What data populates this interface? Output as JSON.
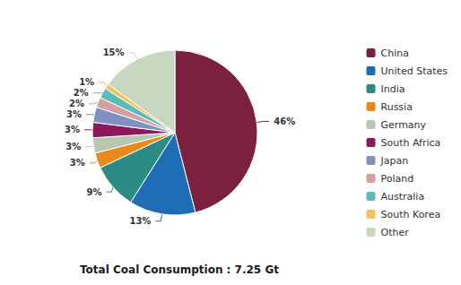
{
  "chart_data": {
    "type": "pie",
    "title": "Total Coal Consumption : 7.25 Gt",
    "categories": [
      "China",
      "United States",
      "India",
      "Russia",
      "Germany",
      "South Africa",
      "Japan",
      "Poland",
      "Australia",
      "South Korea",
      "Other"
    ],
    "values": [
      46,
      13,
      9,
      3,
      3,
      3,
      3,
      2,
      2,
      1,
      15
    ],
    "value_labels": [
      "46%",
      "13%",
      "9%",
      "3%",
      "3%",
      "3%",
      "3%",
      "2%",
      "2%",
      "1%",
      "15%"
    ],
    "colors": [
      "#7B2040",
      "#1F6DB5",
      "#2A8C82",
      "#E8891A",
      "#B8C8B0",
      "#8B1A5A",
      "#8090C0",
      "#D4A0A0",
      "#5ABCB8",
      "#F5C060",
      "#C8D8C0"
    ],
    "legend": "right",
    "data_labels": true
  }
}
